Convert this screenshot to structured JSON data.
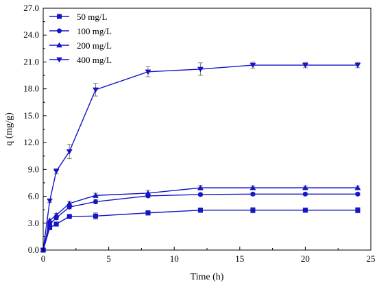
{
  "chart_data": {
    "type": "line",
    "xlabel": "Time (h)",
    "ylabel": "q (mg/g)",
    "xlim": [
      0,
      25
    ],
    "ylim": [
      0.0,
      27.0
    ],
    "xticks": [
      "0",
      "5",
      "10",
      "15",
      "20",
      "25"
    ],
    "yticks": [
      "0.0",
      "3.0",
      "6.0",
      "9.0",
      "12.0",
      "15.0",
      "18.0",
      "21.0",
      "24.0",
      "27.0"
    ],
    "grid": false,
    "legend_position": "top-left",
    "color": "#1414c8",
    "x": [
      0,
      0.5,
      1,
      2,
      4,
      8,
      12,
      16,
      20,
      24
    ],
    "series": [
      {
        "name": "50 mg/L",
        "marker": "square",
        "values": [
          0.0,
          2.5,
          2.9,
          3.75,
          3.8,
          4.15,
          4.45,
          4.45,
          4.45,
          4.45
        ],
        "errors": [
          0,
          0.15,
          0.15,
          0.2,
          0.35,
          0.25,
          0.25,
          0.3,
          0.25,
          0.3
        ]
      },
      {
        "name": "100 mg/L",
        "marker": "circle",
        "values": [
          0.0,
          2.9,
          3.6,
          4.8,
          5.4,
          6.05,
          6.2,
          6.25,
          6.25,
          6.25
        ],
        "errors": [
          0,
          0.15,
          0.2,
          0.2,
          0.25,
          0.2,
          0.15,
          0.15,
          0.15,
          0.15
        ]
      },
      {
        "name": "200 mg/L",
        "marker": "triangle-up",
        "values": [
          0.0,
          3.3,
          3.9,
          5.2,
          6.1,
          6.35,
          6.95,
          6.95,
          6.95,
          6.95
        ],
        "errors": [
          0,
          0.15,
          0.2,
          0.25,
          0.25,
          0.35,
          0.25,
          0.2,
          0.2,
          0.2
        ]
      },
      {
        "name": "400 mg/L",
        "marker": "triangle-down",
        "values": [
          0.0,
          5.5,
          8.8,
          11.0,
          17.9,
          19.9,
          20.2,
          20.65,
          20.65,
          20.65
        ],
        "errors": [
          0,
          0.2,
          0.3,
          0.8,
          0.7,
          0.55,
          0.7,
          0.35,
          0.3,
          0.3
        ]
      }
    ]
  }
}
